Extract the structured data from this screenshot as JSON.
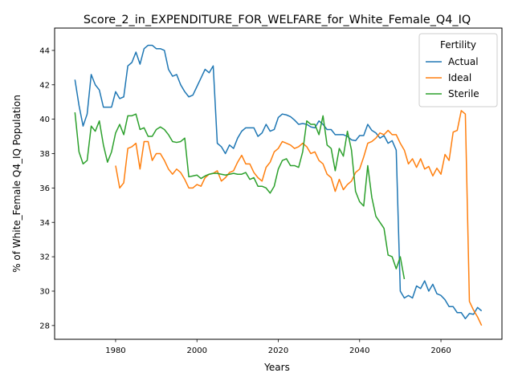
{
  "chart_data": {
    "type": "line",
    "title": "Score_2_in_EXPENDITURE_FOR_WELFARE_for_White_Female_Q4_IQ",
    "xlabel": "Years",
    "ylabel": "% of White_Female Q4_IQ Population",
    "xlim": [
      1965,
      2075
    ],
    "ylim": [
      27.2,
      45.3
    ],
    "xticks": [
      1980,
      2000,
      2020,
      2040,
      2060
    ],
    "yticks": [
      28,
      30,
      32,
      34,
      36,
      38,
      40,
      42,
      44
    ],
    "grid": false,
    "legend": {
      "title": "Fertility",
      "position": "top-right"
    },
    "series": [
      {
        "name": "Actual",
        "color": "#1f77b4",
        "points": [
          [
            1970,
            42.3
          ],
          [
            1971,
            40.8
          ],
          [
            1972,
            39.6
          ],
          [
            1973,
            40.3
          ],
          [
            1974,
            42.6
          ],
          [
            1975,
            42.0
          ],
          [
            1976,
            41.7
          ],
          [
            1977,
            40.7
          ],
          [
            1978,
            40.7
          ],
          [
            1979,
            40.7
          ],
          [
            1980,
            41.6
          ],
          [
            1981,
            41.2
          ],
          [
            1982,
            41.3
          ],
          [
            1983,
            43.1
          ],
          [
            1984,
            43.3
          ],
          [
            1985,
            43.9
          ],
          [
            1986,
            43.2
          ],
          [
            1987,
            44.1
          ],
          [
            1988,
            44.3
          ],
          [
            1989,
            44.3
          ],
          [
            1990,
            44.1
          ],
          [
            1991,
            44.1
          ],
          [
            1992,
            44.0
          ],
          [
            1993,
            42.9
          ],
          [
            1994,
            42.5
          ],
          [
            1995,
            42.6
          ],
          [
            1996,
            42.0
          ],
          [
            1997,
            41.6
          ],
          [
            1998,
            41.3
          ],
          [
            1999,
            41.4
          ],
          [
            2000,
            41.9
          ],
          [
            2001,
            42.4
          ],
          [
            2002,
            42.9
          ],
          [
            2003,
            42.7
          ],
          [
            2004,
            43.1
          ],
          [
            2005,
            38.6
          ],
          [
            2006,
            38.4
          ],
          [
            2007,
            38.0
          ],
          [
            2008,
            38.5
          ],
          [
            2009,
            38.3
          ],
          [
            2010,
            38.9
          ],
          [
            2011,
            39.3
          ],
          [
            2012,
            39.5
          ],
          [
            2013,
            39.5
          ],
          [
            2014,
            39.5
          ],
          [
            2015,
            39.0
          ],
          [
            2016,
            39.2
          ],
          [
            2017,
            39.7
          ],
          [
            2018,
            39.3
          ],
          [
            2019,
            39.4
          ],
          [
            2020,
            40.1
          ],
          [
            2021,
            40.3
          ],
          [
            2022,
            40.25
          ],
          [
            2023,
            40.15
          ],
          [
            2024,
            39.95
          ],
          [
            2025,
            39.7
          ],
          [
            2026,
            39.75
          ],
          [
            2027,
            39.7
          ],
          [
            2028,
            39.55
          ],
          [
            2029,
            39.5
          ],
          [
            2030,
            39.9
          ],
          [
            2031,
            39.7
          ],
          [
            2032,
            39.4
          ],
          [
            2033,
            39.4
          ],
          [
            2034,
            39.1
          ],
          [
            2035,
            39.1
          ],
          [
            2036,
            39.1
          ],
          [
            2037,
            39.0
          ],
          [
            2038,
            38.8
          ],
          [
            2039,
            38.75
          ],
          [
            2040,
            39.05
          ],
          [
            2041,
            39.05
          ],
          [
            2042,
            39.7
          ],
          [
            2043,
            39.35
          ],
          [
            2044,
            39.2
          ],
          [
            2045,
            38.9
          ],
          [
            2046,
            39.05
          ],
          [
            2047,
            38.6
          ],
          [
            2048,
            38.75
          ],
          [
            2049,
            38.2
          ],
          [
            2050,
            30.0
          ],
          [
            2051,
            29.6
          ],
          [
            2052,
            29.75
          ],
          [
            2053,
            29.6
          ],
          [
            2054,
            30.3
          ],
          [
            2055,
            30.15
          ],
          [
            2056,
            30.6
          ],
          [
            2057,
            30.0
          ],
          [
            2058,
            30.4
          ],
          [
            2059,
            29.85
          ],
          [
            2060,
            29.75
          ],
          [
            2061,
            29.5
          ],
          [
            2062,
            29.1
          ],
          [
            2063,
            29.1
          ],
          [
            2064,
            28.75
          ],
          [
            2065,
            28.75
          ],
          [
            2066,
            28.4
          ],
          [
            2067,
            28.7
          ],
          [
            2068,
            28.65
          ],
          [
            2069,
            29.05
          ],
          [
            2070,
            28.85
          ]
        ]
      },
      {
        "name": "Ideal",
        "color": "#ff7f0e",
        "points": [
          [
            1980,
            37.3
          ],
          [
            1981,
            36.0
          ],
          [
            1982,
            36.3
          ],
          [
            1983,
            38.3
          ],
          [
            1984,
            38.4
          ],
          [
            1985,
            38.6
          ],
          [
            1986,
            37.1
          ],
          [
            1987,
            38.7
          ],
          [
            1988,
            38.7
          ],
          [
            1989,
            37.6
          ],
          [
            1990,
            38.0
          ],
          [
            1991,
            38.0
          ],
          [
            1992,
            37.6
          ],
          [
            1993,
            37.1
          ],
          [
            1994,
            36.8
          ],
          [
            1995,
            37.1
          ],
          [
            1996,
            36.9
          ],
          [
            1997,
            36.5
          ],
          [
            1998,
            36.0
          ],
          [
            1999,
            36.0
          ],
          [
            2000,
            36.2
          ],
          [
            2001,
            36.1
          ],
          [
            2002,
            36.6
          ],
          [
            2003,
            36.8
          ],
          [
            2004,
            36.85
          ],
          [
            2005,
            37.0
          ],
          [
            2006,
            36.4
          ],
          [
            2007,
            36.6
          ],
          [
            2008,
            36.9
          ],
          [
            2009,
            37.0
          ],
          [
            2010,
            37.5
          ],
          [
            2011,
            37.9
          ],
          [
            2012,
            37.4
          ],
          [
            2013,
            37.4
          ],
          [
            2014,
            36.9
          ],
          [
            2015,
            36.6
          ],
          [
            2016,
            36.4
          ],
          [
            2017,
            37.2
          ],
          [
            2018,
            37.5
          ],
          [
            2019,
            38.1
          ],
          [
            2020,
            38.3
          ],
          [
            2021,
            38.7
          ],
          [
            2022,
            38.6
          ],
          [
            2023,
            38.5
          ],
          [
            2024,
            38.3
          ],
          [
            2025,
            38.4
          ],
          [
            2026,
            38.6
          ],
          [
            2027,
            38.4
          ],
          [
            2028,
            38.0
          ],
          [
            2029,
            38.1
          ],
          [
            2030,
            37.6
          ],
          [
            2031,
            37.4
          ],
          [
            2032,
            36.8
          ],
          [
            2033,
            36.6
          ],
          [
            2034,
            35.8
          ],
          [
            2035,
            36.5
          ],
          [
            2036,
            35.9
          ],
          [
            2037,
            36.2
          ],
          [
            2038,
            36.4
          ],
          [
            2039,
            36.9
          ],
          [
            2040,
            37.1
          ],
          [
            2041,
            37.8
          ],
          [
            2042,
            38.6
          ],
          [
            2043,
            38.7
          ],
          [
            2044,
            38.9
          ],
          [
            2045,
            39.2
          ],
          [
            2046,
            39.1
          ],
          [
            2047,
            39.35
          ],
          [
            2048,
            39.1
          ],
          [
            2049,
            39.1
          ],
          [
            2050,
            38.6
          ],
          [
            2051,
            38.2
          ],
          [
            2052,
            37.4
          ],
          [
            2053,
            37.7
          ],
          [
            2054,
            37.2
          ],
          [
            2055,
            37.7
          ],
          [
            2056,
            37.1
          ],
          [
            2057,
            37.25
          ],
          [
            2058,
            36.7
          ],
          [
            2059,
            37.15
          ],
          [
            2060,
            36.8
          ],
          [
            2061,
            37.95
          ],
          [
            2062,
            37.6
          ],
          [
            2063,
            39.25
          ],
          [
            2064,
            39.35
          ],
          [
            2065,
            40.5
          ],
          [
            2066,
            40.3
          ],
          [
            2067,
            29.4
          ],
          [
            2068,
            28.9
          ],
          [
            2069,
            28.5
          ],
          [
            2070,
            28.0
          ]
        ]
      },
      {
        "name": "Sterile",
        "color": "#2ca02c",
        "points": [
          [
            1970,
            40.4
          ],
          [
            1971,
            38.1
          ],
          [
            1972,
            37.4
          ],
          [
            1973,
            37.6
          ],
          [
            1974,
            39.6
          ],
          [
            1975,
            39.3
          ],
          [
            1976,
            39.9
          ],
          [
            1977,
            38.5
          ],
          [
            1978,
            37.5
          ],
          [
            1979,
            38.1
          ],
          [
            1980,
            39.2
          ],
          [
            1981,
            39.7
          ],
          [
            1982,
            39.1
          ],
          [
            1983,
            40.2
          ],
          [
            1984,
            40.2
          ],
          [
            1985,
            40.3
          ],
          [
            1986,
            39.4
          ],
          [
            1987,
            39.5
          ],
          [
            1988,
            39.0
          ],
          [
            1989,
            39.0
          ],
          [
            1990,
            39.4
          ],
          [
            1991,
            39.55
          ],
          [
            1992,
            39.4
          ],
          [
            1993,
            39.1
          ],
          [
            1994,
            38.7
          ],
          [
            1995,
            38.65
          ],
          [
            1996,
            38.7
          ],
          [
            1997,
            38.9
          ],
          [
            1998,
            36.65
          ],
          [
            1999,
            36.7
          ],
          [
            2000,
            36.75
          ],
          [
            2001,
            36.55
          ],
          [
            2002,
            36.7
          ],
          [
            2003,
            36.8
          ],
          [
            2004,
            36.85
          ],
          [
            2005,
            36.85
          ],
          [
            2006,
            36.8
          ],
          [
            2007,
            36.75
          ],
          [
            2008,
            36.8
          ],
          [
            2009,
            36.85
          ],
          [
            2010,
            36.8
          ],
          [
            2011,
            36.8
          ],
          [
            2012,
            36.9
          ],
          [
            2013,
            36.5
          ],
          [
            2014,
            36.6
          ],
          [
            2015,
            36.1
          ],
          [
            2016,
            36.1
          ],
          [
            2017,
            36.0
          ],
          [
            2018,
            35.7
          ],
          [
            2019,
            36.1
          ],
          [
            2020,
            37.1
          ],
          [
            2021,
            37.6
          ],
          [
            2022,
            37.7
          ],
          [
            2023,
            37.3
          ],
          [
            2024,
            37.3
          ],
          [
            2025,
            37.2
          ],
          [
            2026,
            38.1
          ],
          [
            2027,
            39.9
          ],
          [
            2028,
            39.7
          ],
          [
            2029,
            39.7
          ],
          [
            2030,
            39.1
          ],
          [
            2031,
            40.2
          ],
          [
            2032,
            38.5
          ],
          [
            2033,
            38.3
          ],
          [
            2034,
            37.0
          ],
          [
            2035,
            38.3
          ],
          [
            2036,
            37.85
          ],
          [
            2037,
            39.3
          ],
          [
            2038,
            38.2
          ],
          [
            2039,
            35.8
          ],
          [
            2040,
            35.2
          ],
          [
            2041,
            34.95
          ],
          [
            2042,
            37.3
          ],
          [
            2043,
            35.45
          ],
          [
            2044,
            34.35
          ],
          [
            2045,
            34.0
          ],
          [
            2046,
            33.65
          ],
          [
            2047,
            32.1
          ],
          [
            2048,
            32.0
          ],
          [
            2049,
            31.3
          ],
          [
            2050,
            32.0
          ],
          [
            2051,
            30.7
          ]
        ]
      }
    ]
  }
}
